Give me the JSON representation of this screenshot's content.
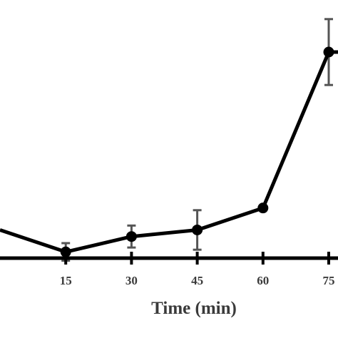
{
  "chart_data": {
    "type": "line",
    "title": "",
    "xlabel": "Time (min)",
    "ylabel": "",
    "x_ticks": [
      "15",
      "30",
      "45",
      "60",
      "75"
    ],
    "xlim": [
      0,
      76
    ],
    "ylim": [
      0,
      100
    ],
    "grid": false,
    "legend": "none",
    "series": [
      {
        "x": [
          0,
          15,
          30,
          45,
          60,
          75
        ],
        "y": [
          19,
          9,
          16,
          19,
          29,
          100
        ],
        "error": [
          null,
          4,
          5,
          9,
          null,
          15
        ]
      }
    ],
    "colors": {
      "line": "#000000",
      "marker": "#000000",
      "error_bar": "#555555",
      "axis": "#000000",
      "text": "#3a3a3a"
    }
  }
}
